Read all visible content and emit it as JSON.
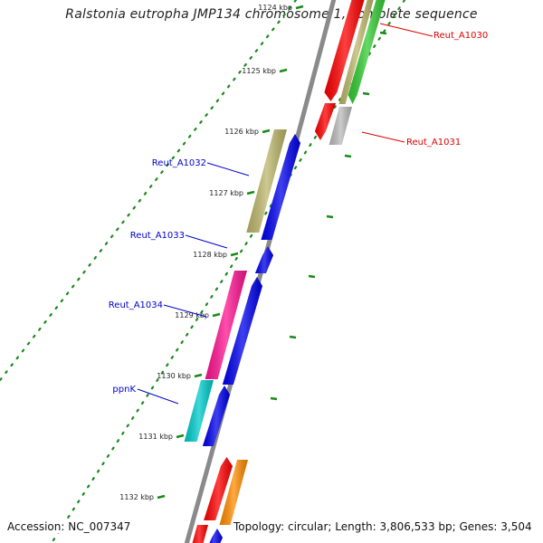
{
  "title": "Ralstonia eutropha JMP134 chromosome 1, complete sequence",
  "footer": {
    "accession": "Accession: NC_007347",
    "topology": "Topology: circular; Length: 3,806,533 bp; Genes: 3,504"
  },
  "ticks": [
    "1124 kbp",
    "1125 kbp",
    "1126 kbp",
    "1127 kbp",
    "1128 kbp",
    "1129 kbp",
    "1130 kbp",
    "1131 kbp",
    "1132 kbp"
  ],
  "gene_labels": [
    {
      "name": "Reut_A1030",
      "color": "#dd0000"
    },
    {
      "name": "Reut_A1031",
      "color": "#dd0000"
    },
    {
      "name": "Reut_A1032",
      "color": "#0000cc"
    },
    {
      "name": "Reut_A1033",
      "color": "#0000cc"
    },
    {
      "name": "Reut_A1034",
      "color": "#0000cc"
    },
    {
      "name": "ppnK",
      "color": "#0000cc"
    }
  ],
  "colors": {
    "backbone": "#888888",
    "tick_green": "#1a8a1a",
    "red": "#ff0000",
    "olive": "#bdb76b",
    "green": "#33cc33",
    "gray": "#bbbbbb",
    "blue": "#0000ee",
    "magenta": "#ff1493",
    "cyan": "#00cccc",
    "orange": "#ff8c00"
  }
}
